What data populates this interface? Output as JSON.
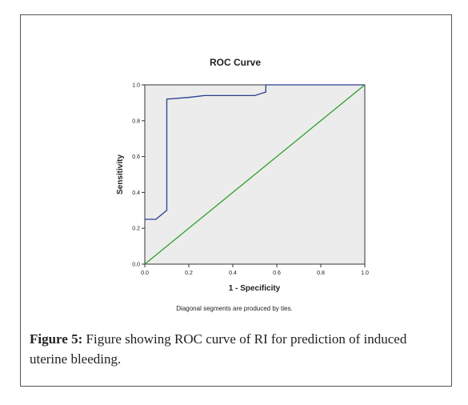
{
  "figure": {
    "caption_label": "Figure 5:",
    "caption_text": "Figure showing ROC curve of RI for prediction of induced uterine bleeding."
  },
  "chart_data": {
    "type": "line",
    "title": "ROC Curve",
    "xlabel": "1 - Specificity",
    "ylabel": "Sensitivity",
    "footnote": "Diagonal segments are produced by ties.",
    "xlim": [
      0,
      1
    ],
    "ylim": [
      0,
      1
    ],
    "x_ticks": [
      "0.0",
      "0.2",
      "0.4",
      "0.6",
      "0.8",
      "1.0"
    ],
    "y_ticks": [
      "0.0",
      "0.2",
      "0.4",
      "0.6",
      "0.8",
      "1.0"
    ],
    "grid": false,
    "legend": "none",
    "series": [
      {
        "color": "#2a3f8f",
        "x": [
          0.0,
          0.05,
          0.09,
          0.1,
          0.1,
          0.2,
          0.27,
          0.5,
          0.55,
          0.55,
          1.0
        ],
        "y": [
          0.25,
          0.25,
          0.29,
          0.3,
          0.92,
          0.93,
          0.94,
          0.94,
          0.96,
          1.0,
          1.0
        ]
      },
      {
        "color": "#2aa02a",
        "x": [
          0,
          1
        ],
        "y": [
          0,
          1
        ]
      }
    ],
    "plot_background": "#ececec"
  }
}
